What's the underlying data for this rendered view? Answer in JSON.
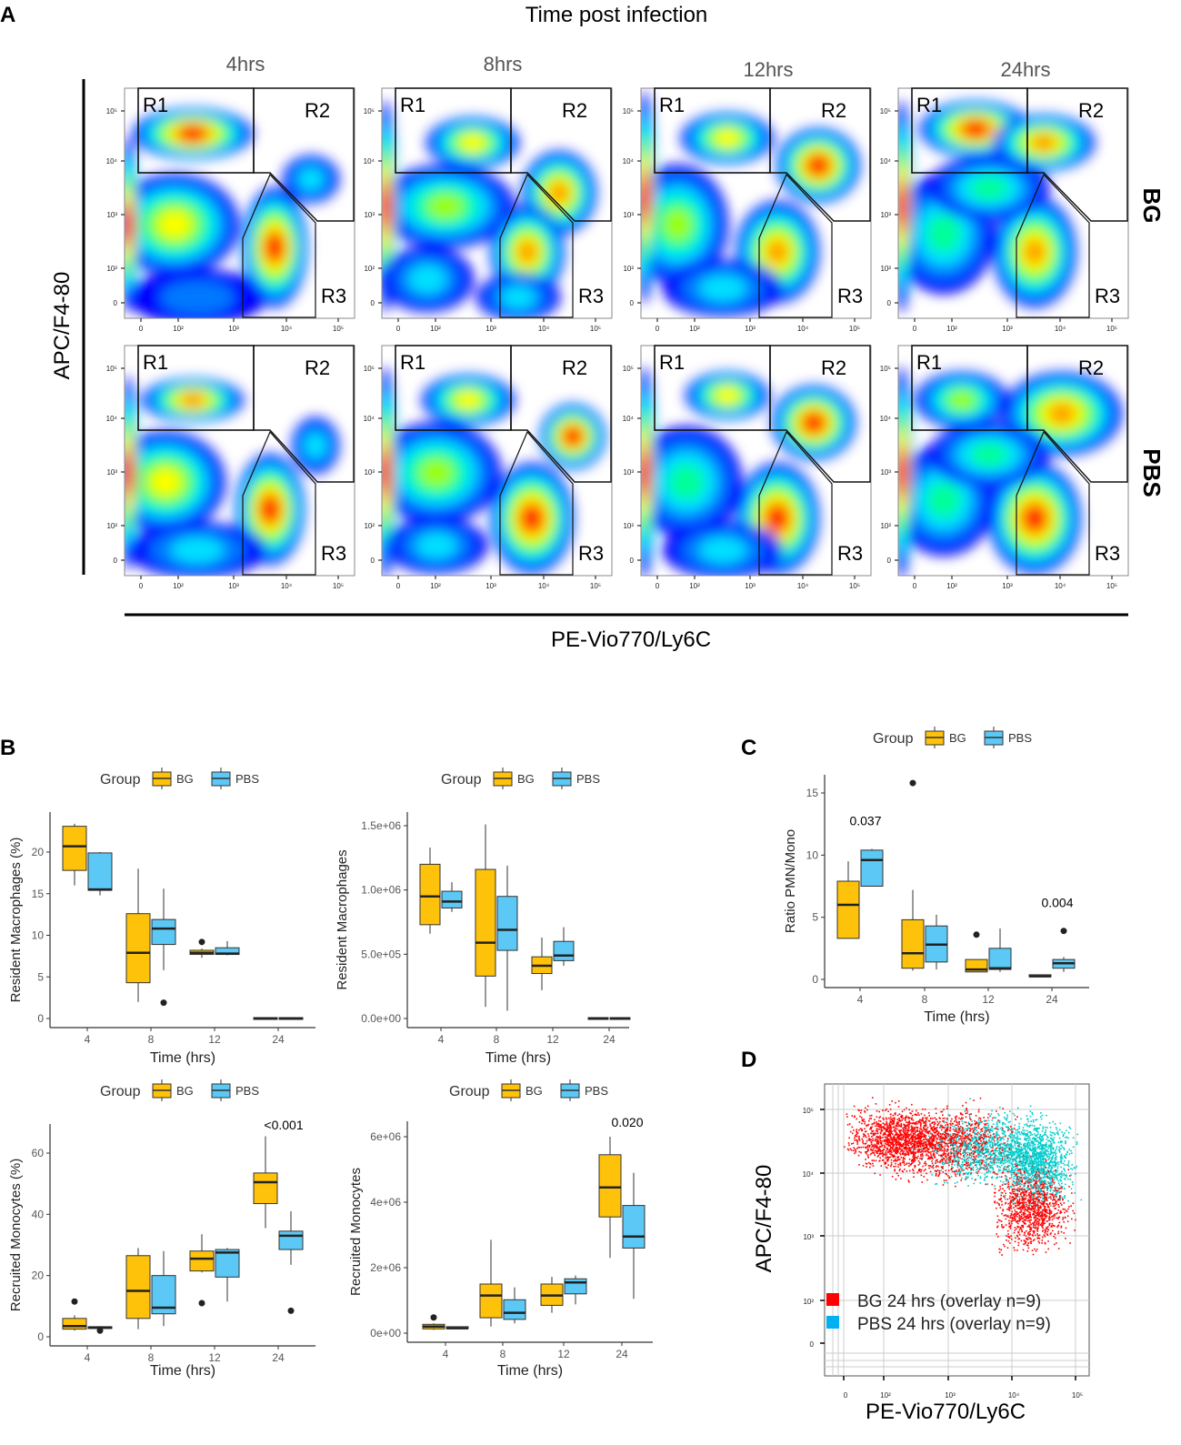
{
  "panel_labels": {
    "a": "A",
    "b": "B",
    "c": "C",
    "d": "D"
  },
  "panel_a": {
    "title": "Time post infection",
    "timepoints": [
      "4hrs",
      "8hrs",
      "12hrs",
      "24hrs"
    ],
    "rows": [
      "BG",
      "PBS"
    ],
    "ylabel": "APC/F4-80",
    "xlabel": "PE-Vio770/Ly6C",
    "gates": [
      "R1",
      "R2",
      "R3"
    ],
    "x_tick_labels": [
      "0",
      "10²",
      "10³",
      "10⁴",
      "10⁵"
    ],
    "y_tick_labels": [
      "10⁵",
      "10⁴",
      "10³",
      "10²",
      "0"
    ],
    "colormap": [
      "#0000ff",
      "#0078ff",
      "#00e0ff",
      "#00ff9a",
      "#9aff00",
      "#ffff00",
      "#ff9a00",
      "#ff0000"
    ]
  },
  "legend": {
    "title": "Group",
    "groups": [
      "BG",
      "PBS"
    ],
    "colors": {
      "BG": "#FFC20A",
      "PBS": "#5BC8F5"
    }
  },
  "chart_data": [
    {
      "id": "b-resident-pct",
      "type": "box",
      "xlabel": "Time (hrs)",
      "ylabel": "Resident Macrophages (%)",
      "categories": [
        "4",
        "8",
        "12",
        "24"
      ],
      "ylim": [
        0,
        24.5
      ],
      "yticks": [
        0,
        5,
        10,
        15,
        20
      ],
      "ytick_labels": [
        "0",
        "5",
        "10",
        "15",
        "20"
      ],
      "series": [
        {
          "name": "BG",
          "boxes": [
            [
              16,
              17.8,
              20.7,
              23.1,
              23.4
            ],
            [
              2,
              4.3,
              7.9,
              12.6,
              18
            ],
            [
              7.3,
              7.7,
              7.9,
              8.2,
              8.4
            ],
            [
              0,
              0,
              0,
              0,
              0
            ]
          ],
          "outliers": [
            [],
            [],
            [
              9.2
            ],
            []
          ]
        },
        {
          "name": "PBS",
          "boxes": [
            [
              14.8,
              15.4,
              15.5,
              19.9,
              20
            ],
            [
              5.8,
              8.9,
              10.8,
              11.9,
              15.6
            ],
            [
              7.6,
              7.7,
              7.8,
              8.5,
              9.3
            ],
            [
              0,
              0,
              0,
              0,
              0
            ]
          ],
          "outliers": [
            [],
            [
              1.9
            ],
            [],
            []
          ]
        }
      ],
      "annotations": []
    },
    {
      "id": "b-resident-count",
      "type": "box",
      "xlabel": "Time (hrs)",
      "ylabel": "Resident Macrophages",
      "categories": [
        "4",
        "8",
        "12",
        "24"
      ],
      "ylim": [
        0,
        1560000
      ],
      "yticks": [
        0,
        500000,
        1000000,
        1500000
      ],
      "ytick_labels": [
        "0.0e+00",
        "5.0e+05",
        "1.0e+06",
        "1.5e+06"
      ],
      "series": [
        {
          "name": "BG",
          "boxes": [
            [
              660000,
              730000,
              950000,
              1200000,
              1330000
            ],
            [
              90000,
              330000,
              590000,
              1160000,
              1510000
            ],
            [
              220000,
              350000,
              410000,
              480000,
              630000
            ],
            [
              0,
              0,
              0,
              0,
              0
            ]
          ],
          "outliers": [
            [],
            [],
            [],
            []
          ]
        },
        {
          "name": "PBS",
          "boxes": [
            [
              830000,
              860000,
              910000,
              990000,
              1060000
            ],
            [
              60000,
              530000,
              690000,
              950000,
              1190000
            ],
            [
              410000,
              450000,
              490000,
              600000,
              710000
            ],
            [
              0,
              0,
              0,
              0,
              0
            ]
          ],
          "outliers": [
            [],
            [],
            [],
            []
          ]
        }
      ],
      "annotations": []
    },
    {
      "id": "b-recruited-pct",
      "type": "box",
      "xlabel": "Time (hrs)",
      "ylabel": "Recruited Monocytes (%)",
      "categories": [
        "4",
        "8",
        "12",
        "24"
      ],
      "ylim": [
        0,
        69
      ],
      "yticks": [
        0,
        20,
        40,
        60
      ],
      "ytick_labels": [
        "0",
        "20",
        "40",
        "60"
      ],
      "series": [
        {
          "name": "BG",
          "boxes": [
            [
              2,
              2.5,
              3.5,
              6,
              7
            ],
            [
              2.5,
              6,
              15,
              26.5,
              29
            ],
            [
              21,
              21.5,
              25.5,
              28,
              33.5
            ],
            [
              35.5,
              43.5,
              50.5,
              53.5,
              65.5
            ]
          ],
          "outliers": [
            [
              11.5
            ],
            [],
            [
              11
            ],
            []
          ]
        },
        {
          "name": "PBS",
          "boxes": [
            [
              2.5,
              2.7,
              3,
              3.3,
              3.5
            ],
            [
              3.5,
              7.5,
              9.5,
              20,
              28
            ],
            [
              11.5,
              19.5,
              27.5,
              28.5,
              29
            ],
            [
              23.5,
              28.5,
              33,
              34.5,
              41
            ]
          ],
          "outliers": [
            [
              2
            ],
            [],
            [],
            [
              8.5
            ]
          ]
        }
      ],
      "annotations": [
        {
          "category": "24",
          "text": "<0.001"
        }
      ]
    },
    {
      "id": "b-recruited-count",
      "type": "box",
      "xlabel": "Time (hrs)",
      "ylabel": "Recruited Monocytes",
      "categories": [
        "4",
        "8",
        "12",
        "24"
      ],
      "ylim": [
        0,
        6300000
      ],
      "yticks": [
        0,
        2000000,
        4000000,
        6000000
      ],
      "ytick_labels": [
        "0e+00",
        "2e+06",
        "4e+06",
        "6e+06"
      ],
      "series": [
        {
          "name": "BG",
          "boxes": [
            [
              100000,
              130000,
              200000,
              270000,
              300000
            ],
            [
              200000,
              470000,
              1150000,
              1500000,
              2850000
            ],
            [
              620000,
              850000,
              1150000,
              1500000,
              1720000
            ],
            [
              2300000,
              3550000,
              4450000,
              5450000,
              6000000
            ]
          ],
          "outliers": [
            [
              480000
            ],
            [],
            [],
            []
          ]
        },
        {
          "name": "PBS",
          "boxes": [
            [
              120000,
              130000,
              150000,
              170000,
              180000
            ],
            [
              300000,
              420000,
              620000,
              1020000,
              1400000
            ],
            [
              880000,
              1200000,
              1550000,
              1660000,
              1760000
            ],
            [
              1050000,
              2600000,
              2950000,
              3900000,
              4900000
            ]
          ],
          "outliers": [
            [],
            [],
            [],
            []
          ]
        }
      ],
      "annotations": [
        {
          "category": "24",
          "text": "0.020"
        }
      ]
    },
    {
      "id": "c-ratio",
      "type": "box",
      "xlabel": "Time (hrs)",
      "ylabel": "Ratio PMN/Mono",
      "categories": [
        "4",
        "8",
        "12",
        "24"
      ],
      "ylim": [
        0,
        16.5
      ],
      "yticks": [
        0,
        5,
        10,
        15
      ],
      "ytick_labels": [
        "0",
        "5",
        "10",
        "15"
      ],
      "series": [
        {
          "name": "BG",
          "boxes": [
            [
              3.3,
              3.3,
              6,
              7.9,
              9.5
            ],
            [
              0.7,
              0.9,
              2.1,
              4.8,
              7.2
            ],
            [
              0.6,
              0.6,
              0.8,
              1.6,
              1.6
            ],
            [
              0.2,
              0.2,
              0.25,
              0.3,
              0.4
            ]
          ],
          "outliers": [
            [],
            [
              15.8
            ],
            [
              3.6
            ],
            []
          ]
        },
        {
          "name": "PBS",
          "boxes": [
            [
              7.5,
              7.5,
              9.6,
              10.4,
              10.5
            ],
            [
              0.8,
              1.4,
              2.8,
              4.3,
              5.2
            ],
            [
              0.6,
              0.8,
              0.9,
              2.5,
              4.1
            ],
            [
              0.6,
              0.9,
              1.3,
              1.6,
              1.8
            ]
          ],
          "outliers": [
            [],
            [],
            [],
            [
              3.9
            ]
          ]
        }
      ],
      "annotations": [
        {
          "category": "4",
          "text": "0.037"
        },
        {
          "category": "24",
          "text": "0.004"
        }
      ]
    },
    {
      "id": "d-overlay",
      "type": "scatter",
      "xlabel": "PE-Vio770/Ly6C",
      "ylabel": "APC/F4-80",
      "x_scale": "biexponential",
      "y_scale": "biexponential",
      "xtick_labels": [
        "0",
        "10²",
        "10³",
        "10⁴",
        "10⁵"
      ],
      "ytick_labels": [
        "10⁵",
        "10⁴",
        "10³",
        "10²",
        "0"
      ],
      "grid": true,
      "legend_position": "bottom-left",
      "series": [
        {
          "name": "BG 24 hrs (overlay n=9)",
          "color": "#ff0000",
          "clusters": [
            {
              "x": 150,
              "y": 35000
            },
            {
              "x": 1000,
              "y": 30000
            },
            {
              "x": 20000,
              "y": 3000
            }
          ]
        },
        {
          "name": "PBS 24 hrs (overlay n=9)",
          "color": "#00cccc",
          "clusters": [
            {
              "x": 5000,
              "y": 25000
            },
            {
              "x": 25000,
              "y": 15000
            }
          ]
        }
      ]
    }
  ]
}
